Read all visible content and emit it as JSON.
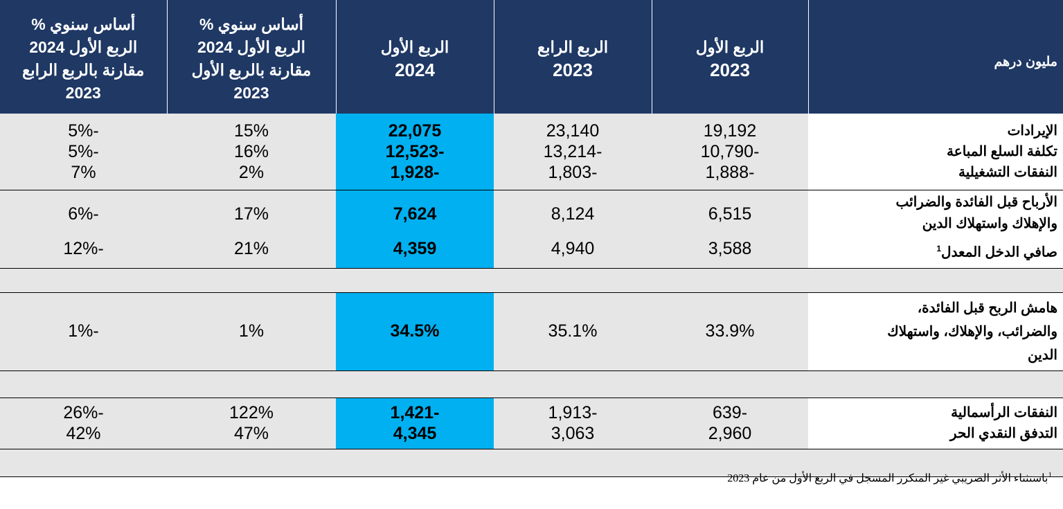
{
  "header": {
    "label": "مليون درهم",
    "columns": [
      [
        "الربع الأول",
        "2023"
      ],
      [
        "الربع الرابع",
        "2023"
      ],
      [
        "الربع الأول",
        "2024"
      ],
      [
        "أساس سنوي %",
        "الربع الأول  2024",
        "مقارنة بالربع الأول",
        "2023"
      ],
      [
        "أساس سنوي %",
        "الربع الأول 2024",
        "مقارنة بالربع الرابع",
        "2023"
      ]
    ]
  },
  "groups": [
    {
      "rows": [
        {
          "label": "الإيرادات",
          "q1_2023": "19,192",
          "q4_2023": "23,140",
          "q1_2024": "22,075",
          "yoy_q1": "15%",
          "vs_q4": "-5%"
        },
        {
          "label": "تكلفة السلع المباعة",
          "q1_2023": "-10,790",
          "q4_2023": "-13,214",
          "q1_2024": "-12,523",
          "yoy_q1": "16%",
          "vs_q4": "-5%"
        },
        {
          "label": "النفقات التشغيلية",
          "q1_2023": "-1,888",
          "q4_2023": "-1,803",
          "q1_2024": "-1,928",
          "yoy_q1": "2%",
          "vs_q4": "7%"
        }
      ]
    },
    {
      "rows": [
        {
          "label_lines": [
            "الأرباح قبل الفائدة والضرائب",
            "والإهلاك واستهلاك الدين"
          ],
          "q1_2023": "6,515",
          "q4_2023": "8,124",
          "q1_2024": "7,624",
          "yoy_q1": "17%",
          "vs_q4": "-6%"
        },
        {
          "label": "صافي الدخل المعدل",
          "sup": "1",
          "q1_2023": "3,588",
          "q4_2023": "4,940",
          "q1_2024": "4,359",
          "yoy_q1": "21%",
          "vs_q4": "-12%"
        }
      ]
    },
    {
      "rows": [
        {
          "label_lines": [
            "هامش الربح قبل الفائدة،",
            "والضرائب، والإهلاك، واستهلاك",
            "الدين"
          ],
          "q1_2023": "33.9%",
          "q4_2023": "35.1%",
          "q1_2024": "34.5%",
          "yoy_q1": "1%",
          "vs_q4": "-1%"
        }
      ]
    },
    {
      "rows": [
        {
          "label": "النفقات الرأسمالية",
          "q1_2023": "-639",
          "q4_2023": "-1,913",
          "q1_2024": "-1,421",
          "yoy_q1": "122%",
          "vs_q4": "-26%"
        },
        {
          "label": "التدفق النقدي الحر",
          "q1_2023": "2,960",
          "q4_2023": "3,063",
          "q1_2024": "4,345",
          "yoy_q1": "47%",
          "vs_q4": "42%"
        }
      ]
    }
  ],
  "footnote": {
    "sup": "1",
    "text": "باستثناء الأثر الضريبي غير المتكرر المسجل في الربع الأول من عام 2023"
  },
  "colors": {
    "header_bg": "#1f3864",
    "highlight": "#00b0f0",
    "row_grey": "#e7e6e6"
  }
}
